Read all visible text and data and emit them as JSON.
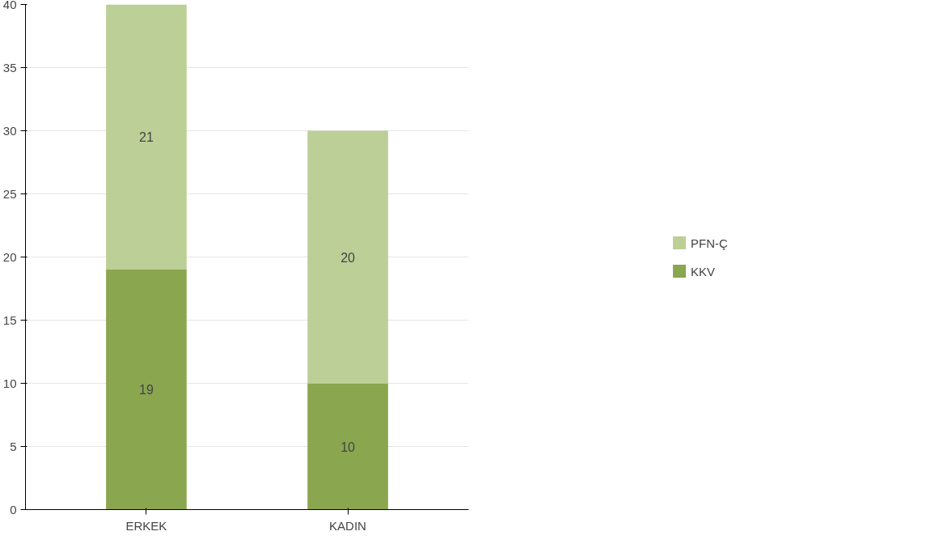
{
  "chart_data": {
    "type": "bar",
    "stacked": true,
    "categories": [
      "ERKEK",
      "KADIN"
    ],
    "series": [
      {
        "name": "KKV",
        "color": "#8aa64f",
        "values": [
          19,
          10
        ]
      },
      {
        "name": "PFN-Ç",
        "color": "#bccf97",
        "values": [
          21,
          20
        ]
      }
    ],
    "ylim": [
      0,
      40
    ],
    "yticks": [
      0,
      5,
      10,
      15,
      20,
      25,
      30,
      35,
      40
    ],
    "grid": "y",
    "legend": "right",
    "data_labels": true
  }
}
